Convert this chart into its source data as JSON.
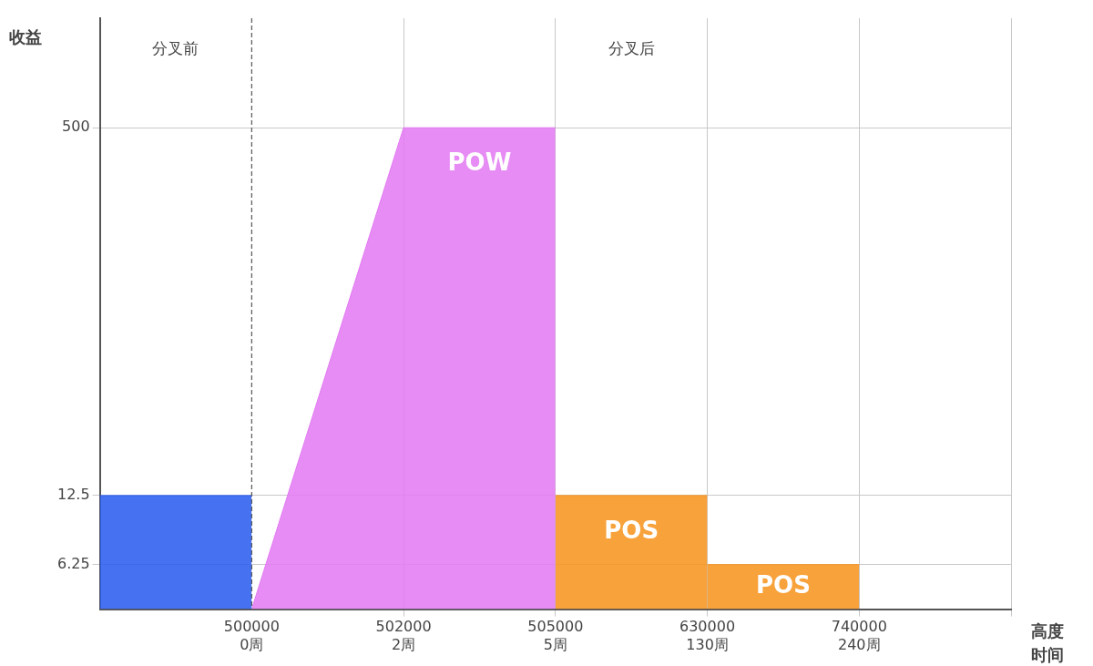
{
  "chart_data": {
    "type": "area",
    "ylabel": "收益",
    "xlabel": "高度时间",
    "categories": [
      null,
      "500000\n0周",
      "502000\n2周",
      "505000\n5周",
      "630000\n130周",
      "740000\n240周",
      null
    ],
    "ylim": [
      4,
      1500
    ],
    "yticks": [
      6.25,
      12.5,
      500
    ],
    "log": "y",
    "grid": true,
    "legend": false,
    "series": [
      {
        "color": "#2a5cf0",
        "values": [
          12.5,
          12.5,
          null,
          null,
          null,
          null,
          null
        ]
      },
      {
        "name": "POW",
        "color": "#e27af2",
        "values": [
          null,
          4,
          500,
          500,
          null,
          null,
          null
        ]
      },
      {
        "name": "POS",
        "color": "#f7941d",
        "values": [
          null,
          null,
          null,
          12.5,
          12.5,
          null,
          null
        ]
      },
      {
        "name": "POS",
        "color": "#f7941d",
        "values": [
          null,
          null,
          null,
          null,
          6.25,
          6.25,
          null
        ]
      }
    ],
    "ref_lines": [
      {
        "axis": "x",
        "value": "500000\n0周",
        "line_style": "dashed"
      }
    ],
    "annotations": [
      "分叉前",
      "分叉后"
    ]
  }
}
